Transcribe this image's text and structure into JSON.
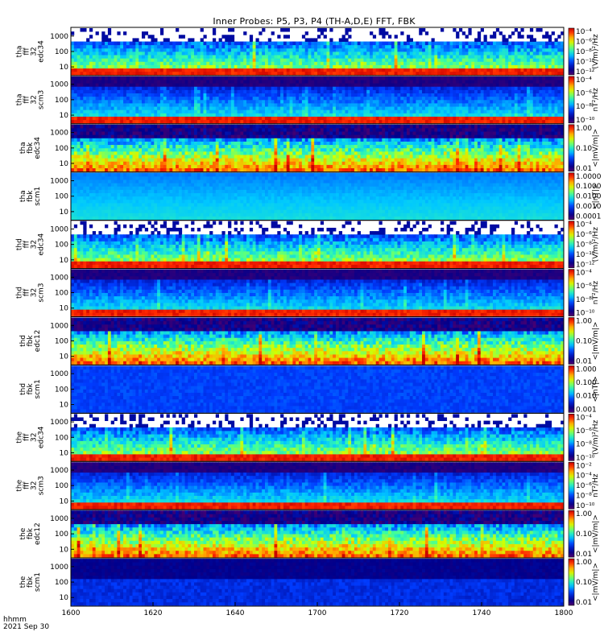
{
  "title": "Inner Probes: P5, P3, P4 (TH-A,D,E) FFT, FBK",
  "footer": {
    "line1": "hhmm",
    "line2": "2021 Sep 30"
  },
  "chart_data": {
    "type": "heatmap",
    "x_axis": {
      "range": [
        "1600",
        "1800"
      ],
      "tick_labels": [
        "1600",
        "1620",
        "1640",
        "1700",
        "1720",
        "1740",
        "1800"
      ]
    },
    "panels": [
      {
        "label": [
          "tha",
          "fff",
          "32",
          "edc34"
        ],
        "y_ticks": [
          "1000",
          "100",
          "10"
        ],
        "colorbar": {
          "ticks": [
            "10⁻⁴",
            "10⁻⁶",
            "10⁻⁸",
            "10⁻¹⁰",
            "10⁻¹²"
          ],
          "title": "(V/m)²/Hz"
        }
      },
      {
        "label": [
          "tha",
          "fff",
          "32",
          "scm3"
        ],
        "y_ticks": [
          "1000",
          "100",
          "10"
        ],
        "colorbar": {
          "ticks": [
            "10⁻⁴",
            "10⁻⁶",
            "10⁻⁸",
            "10⁻¹⁰"
          ],
          "title": "nT²/Hz"
        }
      },
      {
        "label": [
          "tha",
          "fbk",
          "edc34"
        ],
        "y_ticks": [
          "1000",
          "100",
          "10"
        ],
        "colorbar": {
          "ticks": [
            "1.00",
            "0.10",
            "0.01"
          ],
          "title": "<|mV/m|>"
        }
      },
      {
        "label": [
          "tha",
          "fbk",
          "scm1"
        ],
        "y_ticks": [
          "1000",
          "100",
          "10"
        ],
        "colorbar": {
          "ticks": [
            "1.0000",
            "0.1000",
            "0.0100",
            "0.0010",
            "0.0001"
          ],
          "title": "<|nT|>"
        }
      },
      {
        "label": [
          "thd",
          "fff",
          "32",
          "edc34"
        ],
        "y_ticks": [
          "1000",
          "100",
          "10"
        ],
        "colorbar": {
          "ticks": [
            "10⁻⁴",
            "10⁻⁶",
            "10⁻⁸",
            "10⁻¹⁰",
            "10⁻¹²"
          ],
          "title": "(V/m)²/Hz"
        }
      },
      {
        "label": [
          "thd",
          "fff",
          "32",
          "scm3"
        ],
        "y_ticks": [
          "1000",
          "100",
          "10"
        ],
        "colorbar": {
          "ticks": [
            "10⁻⁴",
            "10⁻⁶",
            "10⁻⁸",
            "10⁻¹⁰"
          ],
          "title": "nT²/Hz"
        }
      },
      {
        "label": [
          "thd",
          "fbk",
          "edc12"
        ],
        "y_ticks": [
          "1000",
          "100",
          "10"
        ],
        "colorbar": {
          "ticks": [
            "1.00",
            "0.10",
            "0.01"
          ],
          "title": "<|mV/m|>"
        }
      },
      {
        "label": [
          "thd",
          "fbk",
          "scm1"
        ],
        "y_ticks": [
          "1000",
          "100",
          "10"
        ],
        "colorbar": {
          "ticks": [
            "1.000",
            "0.100",
            "0.010",
            "0.001"
          ],
          "title": "<|nT|>"
        }
      },
      {
        "label": [
          "the",
          "fff",
          "32",
          "edc34"
        ],
        "y_ticks": [
          "1000",
          "100",
          "10"
        ],
        "colorbar": {
          "ticks": [
            "10⁻⁴",
            "10⁻⁶",
            "10⁻⁸",
            "10⁻¹⁰"
          ],
          "title": "(V/m)²/Hz"
        }
      },
      {
        "label": [
          "the",
          "fff",
          "32",
          "scm3"
        ],
        "y_ticks": [
          "1000",
          "100",
          "10"
        ],
        "colorbar": {
          "ticks": [
            "10⁻²",
            "10⁻⁴",
            "10⁻⁶",
            "10⁻⁸",
            "10⁻¹⁰"
          ],
          "title": "nT²/Hz"
        }
      },
      {
        "label": [
          "the",
          "fbk",
          "edc12"
        ],
        "y_ticks": [
          "1000",
          "100",
          "10"
        ],
        "colorbar": {
          "ticks": [
            "1.00",
            "0.10",
            "0.01"
          ],
          "title": "<|mV/m|>"
        }
      },
      {
        "label": [
          "the",
          "fbk",
          "scm1"
        ],
        "y_ticks": [
          "1000",
          "100",
          "10"
        ],
        "colorbar": {
          "ticks": [
            "1.00",
            "0.10",
            "0.01"
          ],
          "title": "<|mV/m|>"
        }
      }
    ]
  }
}
